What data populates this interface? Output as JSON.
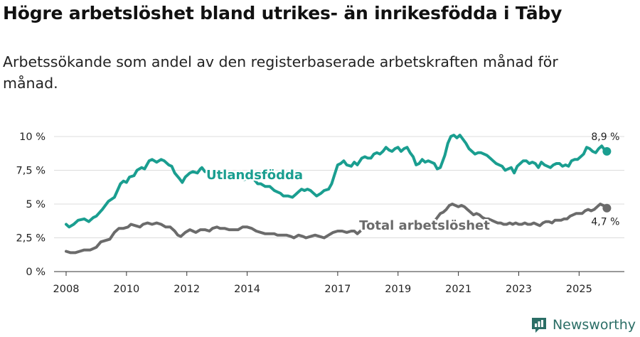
{
  "title": "Högre arbetslöshet bland utrikes- än inrikesfödda i Täby",
  "subtitle": "Arbetssökande som andel av den registerbaserade arbetskraften månad för månad.",
  "brand": {
    "name": "Newsworthy",
    "icon": "newsworthy-logo-icon",
    "color": "#2b6e66"
  },
  "chart_data": {
    "type": "line",
    "xlabel": "",
    "ylabel": "",
    "xlim": [
      2007.6,
      2026.5
    ],
    "ylim": [
      0,
      10
    ],
    "grid": true,
    "yticks": [
      0,
      2.5,
      5,
      7.5,
      10
    ],
    "ytick_labels": [
      "0 %",
      "2,5 %",
      "5 %",
      "7,5 %",
      "10 %"
    ],
    "xticks": [
      2008,
      2010,
      2012,
      2014,
      2017,
      2019,
      2021,
      2023,
      2025
    ],
    "xtick_labels": [
      "2008",
      "2010",
      "2012",
      "2014",
      "2017",
      "2019",
      "2021",
      "2023",
      "2025"
    ],
    "series": [
      {
        "name": "Utlandsfödda",
        "color": "#1a9e90",
        "end_label": "8,9 %",
        "points": [
          [
            2008.0,
            3.5
          ],
          [
            2008.1,
            3.3
          ],
          [
            2008.25,
            3.5
          ],
          [
            2008.4,
            3.8
          ],
          [
            2008.6,
            3.9
          ],
          [
            2008.75,
            3.7
          ],
          [
            2008.9,
            4.0
          ],
          [
            2009.0,
            4.1
          ],
          [
            2009.2,
            4.6
          ],
          [
            2009.4,
            5.2
          ],
          [
            2009.6,
            5.5
          ],
          [
            2009.8,
            6.5
          ],
          [
            2009.9,
            6.7
          ],
          [
            2010.0,
            6.6
          ],
          [
            2010.1,
            7.0
          ],
          [
            2010.25,
            7.1
          ],
          [
            2010.35,
            7.5
          ],
          [
            2010.5,
            7.7
          ],
          [
            2010.6,
            7.6
          ],
          [
            2010.75,
            8.2
          ],
          [
            2010.85,
            8.3
          ],
          [
            2011.0,
            8.1
          ],
          [
            2011.15,
            8.3
          ],
          [
            2011.25,
            8.2
          ],
          [
            2011.4,
            7.9
          ],
          [
            2011.5,
            7.8
          ],
          [
            2011.6,
            7.3
          ],
          [
            2011.75,
            6.9
          ],
          [
            2011.85,
            6.6
          ],
          [
            2011.95,
            7.0
          ],
          [
            2012.1,
            7.3
          ],
          [
            2012.2,
            7.4
          ],
          [
            2012.35,
            7.3
          ],
          [
            2012.45,
            7.6
          ],
          [
            2012.5,
            7.7
          ],
          [
            2012.6,
            7.4
          ],
          [
            2012.7,
            7.5
          ],
          [
            2013.9,
            6.8
          ],
          [
            2014.0,
            6.9
          ],
          [
            2014.1,
            7.0
          ],
          [
            2014.2,
            6.9
          ],
          [
            2014.35,
            6.5
          ],
          [
            2014.45,
            6.5
          ],
          [
            2014.6,
            6.3
          ],
          [
            2014.75,
            6.3
          ],
          [
            2014.9,
            6.0
          ],
          [
            2015.0,
            5.9
          ],
          [
            2015.1,
            5.8
          ],
          [
            2015.2,
            5.6
          ],
          [
            2015.35,
            5.6
          ],
          [
            2015.5,
            5.5
          ],
          [
            2015.6,
            5.7
          ],
          [
            2015.7,
            5.9
          ],
          [
            2015.8,
            6.1
          ],
          [
            2015.9,
            6.0
          ],
          [
            2016.0,
            6.1
          ],
          [
            2016.1,
            6.0
          ],
          [
            2016.2,
            5.8
          ],
          [
            2016.3,
            5.6
          ],
          [
            2016.45,
            5.8
          ],
          [
            2016.55,
            6.0
          ],
          [
            2016.7,
            6.1
          ],
          [
            2016.8,
            6.5
          ],
          [
            2016.9,
            7.2
          ],
          [
            2017.0,
            7.9
          ],
          [
            2017.1,
            8.0
          ],
          [
            2017.2,
            8.2
          ],
          [
            2017.3,
            7.9
          ],
          [
            2017.45,
            7.8
          ],
          [
            2017.55,
            8.1
          ],
          [
            2017.65,
            7.9
          ],
          [
            2017.8,
            8.4
          ],
          [
            2017.9,
            8.5
          ],
          [
            2018.0,
            8.4
          ],
          [
            2018.1,
            8.4
          ],
          [
            2018.2,
            8.7
          ],
          [
            2018.3,
            8.8
          ],
          [
            2018.4,
            8.7
          ],
          [
            2018.5,
            8.9
          ],
          [
            2018.6,
            9.2
          ],
          [
            2018.7,
            9.0
          ],
          [
            2018.8,
            8.9
          ],
          [
            2018.9,
            9.1
          ],
          [
            2019.0,
            9.2
          ],
          [
            2019.1,
            8.9
          ],
          [
            2019.2,
            9.1
          ],
          [
            2019.3,
            9.2
          ],
          [
            2019.4,
            8.8
          ],
          [
            2019.5,
            8.5
          ],
          [
            2019.6,
            7.9
          ],
          [
            2019.7,
            8.0
          ],
          [
            2019.8,
            8.3
          ],
          [
            2019.9,
            8.1
          ],
          [
            2020.0,
            8.2
          ],
          [
            2020.1,
            8.1
          ],
          [
            2020.2,
            8.0
          ],
          [
            2020.3,
            7.6
          ],
          [
            2020.4,
            7.7
          ],
          [
            2020.55,
            8.6
          ],
          [
            2020.65,
            9.5
          ],
          [
            2020.75,
            10.0
          ],
          [
            2020.85,
            10.1
          ],
          [
            2020.95,
            9.9
          ],
          [
            2021.05,
            10.1
          ],
          [
            2021.15,
            9.8
          ],
          [
            2021.25,
            9.5
          ],
          [
            2021.35,
            9.1
          ],
          [
            2021.45,
            8.9
          ],
          [
            2021.55,
            8.7
          ],
          [
            2021.65,
            8.8
          ],
          [
            2021.75,
            8.8
          ],
          [
            2021.85,
            8.7
          ],
          [
            2021.95,
            8.6
          ],
          [
            2022.05,
            8.4
          ],
          [
            2022.15,
            8.2
          ],
          [
            2022.25,
            8.0
          ],
          [
            2022.35,
            7.9
          ],
          [
            2022.45,
            7.8
          ],
          [
            2022.55,
            7.5
          ],
          [
            2022.65,
            7.6
          ],
          [
            2022.75,
            7.7
          ],
          [
            2022.85,
            7.3
          ],
          [
            2022.95,
            7.8
          ],
          [
            2023.05,
            8.0
          ],
          [
            2023.15,
            8.2
          ],
          [
            2023.25,
            8.2
          ],
          [
            2023.35,
            8.0
          ],
          [
            2023.45,
            8.1
          ],
          [
            2023.55,
            8.0
          ],
          [
            2023.65,
            7.7
          ],
          [
            2023.75,
            8.1
          ],
          [
            2023.85,
            7.9
          ],
          [
            2023.95,
            7.8
          ],
          [
            2024.05,
            7.7
          ],
          [
            2024.15,
            7.9
          ],
          [
            2024.25,
            8.0
          ],
          [
            2024.35,
            8.0
          ],
          [
            2024.45,
            7.8
          ],
          [
            2024.55,
            7.9
          ],
          [
            2024.65,
            7.8
          ],
          [
            2024.75,
            8.2
          ],
          [
            2024.85,
            8.3
          ],
          [
            2024.95,
            8.3
          ],
          [
            2025.05,
            8.5
          ],
          [
            2025.15,
            8.7
          ],
          [
            2025.25,
            9.2
          ],
          [
            2025.35,
            9.1
          ],
          [
            2025.45,
            8.9
          ],
          [
            2025.55,
            8.8
          ],
          [
            2025.65,
            9.1
          ],
          [
            2025.75,
            9.3
          ],
          [
            2025.85,
            9.0
          ],
          [
            2025.92,
            8.9
          ]
        ]
      },
      {
        "name": "Total arbetslöshet",
        "color": "#6b6b6b",
        "end_label": "4,7 %",
        "points": [
          [
            2008.0,
            1.5
          ],
          [
            2008.15,
            1.4
          ],
          [
            2008.3,
            1.4
          ],
          [
            2008.45,
            1.5
          ],
          [
            2008.6,
            1.6
          ],
          [
            2008.8,
            1.6
          ],
          [
            2009.0,
            1.8
          ],
          [
            2009.15,
            2.2
          ],
          [
            2009.3,
            2.3
          ],
          [
            2009.45,
            2.4
          ],
          [
            2009.6,
            2.9
          ],
          [
            2009.75,
            3.2
          ],
          [
            2009.9,
            3.2
          ],
          [
            2010.05,
            3.3
          ],
          [
            2010.15,
            3.5
          ],
          [
            2010.3,
            3.4
          ],
          [
            2010.45,
            3.3
          ],
          [
            2010.55,
            3.5
          ],
          [
            2010.7,
            3.6
          ],
          [
            2010.85,
            3.5
          ],
          [
            2011.0,
            3.6
          ],
          [
            2011.15,
            3.5
          ],
          [
            2011.3,
            3.3
          ],
          [
            2011.45,
            3.3
          ],
          [
            2011.6,
            3.0
          ],
          [
            2011.7,
            2.7
          ],
          [
            2011.8,
            2.6
          ],
          [
            2011.95,
            2.9
          ],
          [
            2012.1,
            3.1
          ],
          [
            2012.2,
            3.0
          ],
          [
            2012.3,
            2.9
          ],
          [
            2012.45,
            3.1
          ],
          [
            2012.6,
            3.1
          ],
          [
            2012.75,
            3.0
          ],
          [
            2012.85,
            3.2
          ],
          [
            2013.0,
            3.3
          ],
          [
            2013.1,
            3.2
          ],
          [
            2013.25,
            3.2
          ],
          [
            2013.4,
            3.1
          ],
          [
            2013.55,
            3.1
          ],
          [
            2013.7,
            3.1
          ],
          [
            2013.85,
            3.3
          ],
          [
            2014.0,
            3.3
          ],
          [
            2014.15,
            3.2
          ],
          [
            2014.3,
            3.0
          ],
          [
            2014.45,
            2.9
          ],
          [
            2014.6,
            2.8
          ],
          [
            2014.75,
            2.8
          ],
          [
            2014.9,
            2.8
          ],
          [
            2015.0,
            2.7
          ],
          [
            2015.15,
            2.7
          ],
          [
            2015.3,
            2.7
          ],
          [
            2015.45,
            2.6
          ],
          [
            2015.55,
            2.5
          ],
          [
            2015.7,
            2.7
          ],
          [
            2015.85,
            2.6
          ],
          [
            2015.95,
            2.5
          ],
          [
            2016.1,
            2.6
          ],
          [
            2016.25,
            2.7
          ],
          [
            2016.4,
            2.6
          ],
          [
            2016.55,
            2.5
          ],
          [
            2016.7,
            2.7
          ],
          [
            2016.85,
            2.9
          ],
          [
            2017.0,
            3.0
          ],
          [
            2017.15,
            3.0
          ],
          [
            2017.3,
            2.9
          ],
          [
            2017.45,
            3.0
          ],
          [
            2017.55,
            3.0
          ],
          [
            2017.65,
            2.8
          ],
          [
            2017.75,
            3.0
          ],
          [
            2020.2,
            3.7
          ],
          [
            2020.3,
            4.0
          ],
          [
            2020.4,
            4.3
          ],
          [
            2020.5,
            4.4
          ],
          [
            2020.6,
            4.6
          ],
          [
            2020.7,
            4.9
          ],
          [
            2020.8,
            5.0
          ],
          [
            2020.9,
            4.9
          ],
          [
            2021.0,
            4.8
          ],
          [
            2021.1,
            4.9
          ],
          [
            2021.2,
            4.8
          ],
          [
            2021.3,
            4.6
          ],
          [
            2021.4,
            4.4
          ],
          [
            2021.5,
            4.2
          ],
          [
            2021.6,
            4.3
          ],
          [
            2021.7,
            4.2
          ],
          [
            2021.8,
            4.0
          ],
          [
            2021.9,
            3.9
          ],
          [
            2022.0,
            3.9
          ],
          [
            2022.1,
            3.8
          ],
          [
            2022.2,
            3.7
          ],
          [
            2022.3,
            3.6
          ],
          [
            2022.4,
            3.6
          ],
          [
            2022.5,
            3.5
          ],
          [
            2022.6,
            3.5
          ],
          [
            2022.7,
            3.6
          ],
          [
            2022.8,
            3.5
          ],
          [
            2022.9,
            3.6
          ],
          [
            2023.0,
            3.5
          ],
          [
            2023.1,
            3.5
          ],
          [
            2023.2,
            3.6
          ],
          [
            2023.3,
            3.5
          ],
          [
            2023.4,
            3.5
          ],
          [
            2023.5,
            3.6
          ],
          [
            2023.6,
            3.5
          ],
          [
            2023.7,
            3.4
          ],
          [
            2023.8,
            3.6
          ],
          [
            2023.9,
            3.7
          ],
          [
            2024.0,
            3.7
          ],
          [
            2024.1,
            3.6
          ],
          [
            2024.2,
            3.8
          ],
          [
            2024.3,
            3.8
          ],
          [
            2024.4,
            3.8
          ],
          [
            2024.5,
            3.9
          ],
          [
            2024.6,
            3.9
          ],
          [
            2024.7,
            4.1
          ],
          [
            2024.8,
            4.2
          ],
          [
            2024.9,
            4.3
          ],
          [
            2025.0,
            4.3
          ],
          [
            2025.1,
            4.3
          ],
          [
            2025.2,
            4.5
          ],
          [
            2025.3,
            4.6
          ],
          [
            2025.4,
            4.5
          ],
          [
            2025.5,
            4.6
          ],
          [
            2025.6,
            4.8
          ],
          [
            2025.7,
            5.0
          ],
          [
            2025.8,
            4.9
          ],
          [
            2025.92,
            4.7
          ]
        ]
      }
    ]
  }
}
